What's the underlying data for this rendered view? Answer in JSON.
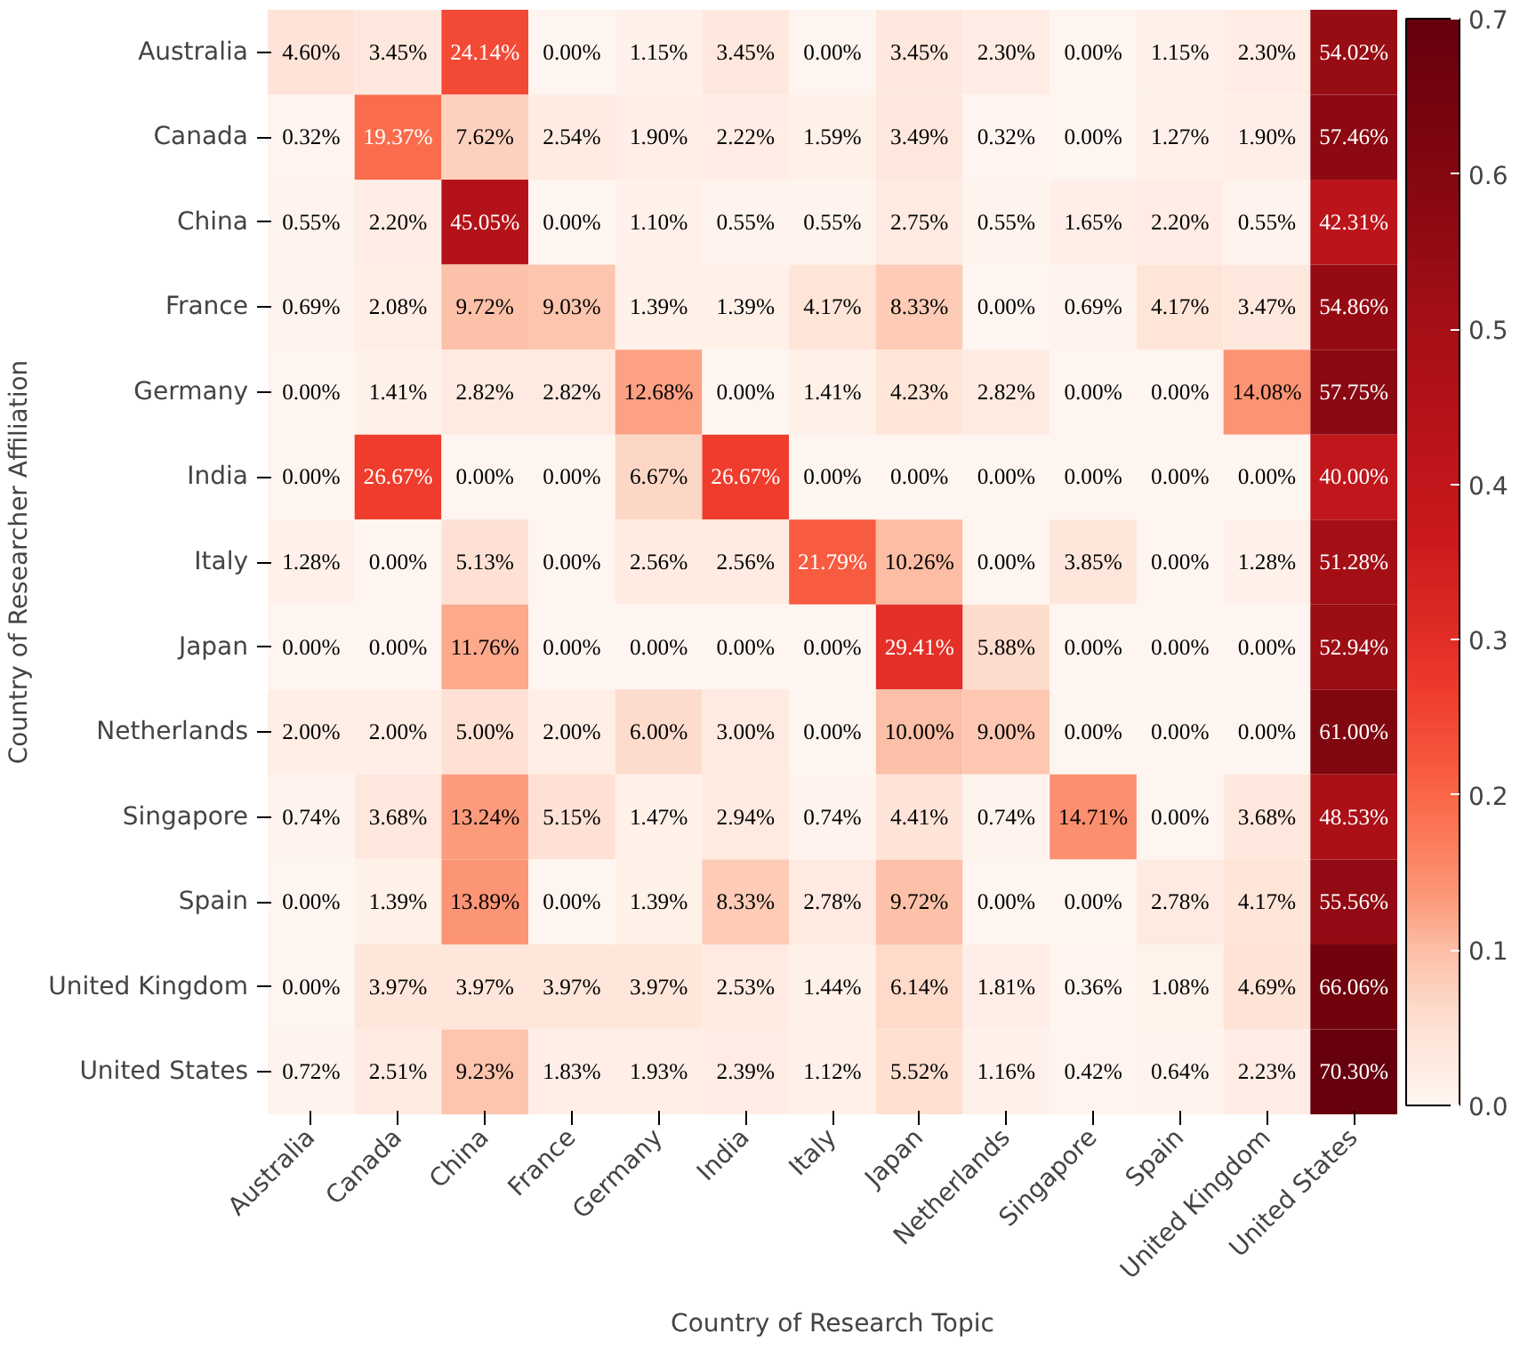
{
  "chart_data": {
    "type": "heatmap",
    "xlabel": "Country of Research Topic",
    "ylabel": "Country of Researcher Affiliation",
    "categories": [
      "Australia",
      "Canada",
      "China",
      "France",
      "Germany",
      "India",
      "Italy",
      "Japan",
      "Netherlands",
      "Singapore",
      "Spain",
      "United Kingdom",
      "United States"
    ],
    "y_categories": [
      "Australia",
      "Canada",
      "China",
      "France",
      "Germany",
      "India",
      "Italy",
      "Japan",
      "Netherlands",
      "Singapore",
      "Spain",
      "United Kingdom",
      "United States"
    ],
    "cells": [
      [
        0.046,
        0.0345,
        0.2414,
        0,
        0.0115,
        0.0345,
        0,
        0.0345,
        0.023,
        0,
        0.0115,
        0.023,
        0.5402
      ],
      [
        0.0032,
        0.1937,
        0.0762,
        0.0254,
        0.019,
        0.0222,
        0.0159,
        0.0349,
        0.0032,
        0,
        0.0127,
        0.019,
        0.5746
      ],
      [
        0.0055,
        0.022,
        0.4505,
        0,
        0.011,
        0.0055,
        0.0055,
        0.0275,
        0.0055,
        0.0165,
        0.022,
        0.0055,
        0.4231
      ],
      [
        0.0069,
        0.0208,
        0.0972,
        0.0903,
        0.0139,
        0.0139,
        0.0417,
        0.0833,
        0,
        0.0069,
        0.0417,
        0.0347,
        0.5486
      ],
      [
        0,
        0.0141,
        0.0282,
        0.0282,
        0.1268,
        0,
        0.0141,
        0.0423,
        0.0282,
        0,
        0,
        0.1408,
        0.5775
      ],
      [
        0,
        0.2667,
        0,
        0,
        0.0667,
        0.2667,
        0,
        0,
        0,
        0,
        0,
        0,
        0.4
      ],
      [
        0.0128,
        0,
        0.0513,
        0,
        0.0256,
        0.0256,
        0.2179,
        0.1026,
        0,
        0.0385,
        0,
        0.0128,
        0.5128
      ],
      [
        0,
        0,
        0.1176,
        0,
        0,
        0,
        0,
        0.2941,
        0.0588,
        0,
        0,
        0,
        0.5294
      ],
      [
        0.02,
        0.02,
        0.05,
        0.02,
        0.06,
        0.03,
        0,
        0.1,
        0.09,
        0,
        0,
        0,
        0.61
      ],
      [
        0.0074,
        0.0368,
        0.1324,
        0.0515,
        0.0147,
        0.0294,
        0.0074,
        0.0441,
        0.0074,
        0.1471,
        0,
        0.0368,
        0.4853
      ],
      [
        0,
        0.0139,
        0.1389,
        0,
        0.0139,
        0.0833,
        0.0278,
        0.0972,
        0,
        0,
        0.0278,
        0.0417,
        0.5556
      ],
      [
        0,
        0.0397,
        0.0397,
        0.0397,
        0.0397,
        0.0253,
        0.0144,
        0.0614,
        0.0181,
        0.0036,
        0.0108,
        0.0469,
        0.6606
      ],
      [
        0.0072,
        0.0251,
        0.0923,
        0.0183,
        0.0193,
        0.0239,
        0.0112,
        0.0552,
        0.0116,
        0.0042,
        0.0064,
        0.0223,
        0.703
      ]
    ],
    "cell_labels": [
      [
        "4.60%",
        "3.45%",
        "24.14%",
        "0.00%",
        "1.15%",
        "3.45%",
        "0.00%",
        "3.45%",
        "2.30%",
        "0.00%",
        "1.15%",
        "2.30%",
        "54.02%"
      ],
      [
        "0.32%",
        "19.37%",
        "7.62%",
        "2.54%",
        "1.90%",
        "2.22%",
        "1.59%",
        "3.49%",
        "0.32%",
        "0.00%",
        "1.27%",
        "1.90%",
        "57.46%"
      ],
      [
        "0.55%",
        "2.20%",
        "45.05%",
        "0.00%",
        "1.10%",
        "0.55%",
        "0.55%",
        "2.75%",
        "0.55%",
        "1.65%",
        "2.20%",
        "0.55%",
        "42.31%"
      ],
      [
        "0.69%",
        "2.08%",
        "9.72%",
        "9.03%",
        "1.39%",
        "1.39%",
        "4.17%",
        "8.33%",
        "0.00%",
        "0.69%",
        "4.17%",
        "3.47%",
        "54.86%"
      ],
      [
        "0.00%",
        "1.41%",
        "2.82%",
        "2.82%",
        "12.68%",
        "0.00%",
        "1.41%",
        "4.23%",
        "2.82%",
        "0.00%",
        "0.00%",
        "14.08%",
        "57.75%"
      ],
      [
        "0.00%",
        "26.67%",
        "0.00%",
        "0.00%",
        "6.67%",
        "26.67%",
        "0.00%",
        "0.00%",
        "0.00%",
        "0.00%",
        "0.00%",
        "0.00%",
        "40.00%"
      ],
      [
        "1.28%",
        "0.00%",
        "5.13%",
        "0.00%",
        "2.56%",
        "2.56%",
        "21.79%",
        "10.26%",
        "0.00%",
        "3.85%",
        "0.00%",
        "1.28%",
        "51.28%"
      ],
      [
        "0.00%",
        "0.00%",
        "11.76%",
        "0.00%",
        "0.00%",
        "0.00%",
        "0.00%",
        "29.41%",
        "5.88%",
        "0.00%",
        "0.00%",
        "0.00%",
        "52.94%"
      ],
      [
        "2.00%",
        "2.00%",
        "5.00%",
        "2.00%",
        "6.00%",
        "3.00%",
        "0.00%",
        "10.00%",
        "9.00%",
        "0.00%",
        "0.00%",
        "0.00%",
        "61.00%"
      ],
      [
        "0.74%",
        "3.68%",
        "13.24%",
        "5.15%",
        "1.47%",
        "2.94%",
        "0.74%",
        "4.41%",
        "0.74%",
        "14.71%",
        "0.00%",
        "3.68%",
        "48.53%"
      ],
      [
        "0.00%",
        "1.39%",
        "13.89%",
        "0.00%",
        "1.39%",
        "8.33%",
        "2.78%",
        "9.72%",
        "0.00%",
        "0.00%",
        "2.78%",
        "4.17%",
        "55.56%"
      ],
      [
        "0.00%",
        "3.97%",
        "3.97%",
        "3.97%",
        "3.97%",
        "2.53%",
        "1.44%",
        "6.14%",
        "1.81%",
        "0.36%",
        "1.08%",
        "4.69%",
        "66.06%"
      ],
      [
        "0.72%",
        "2.51%",
        "9.23%",
        "1.83%",
        "1.93%",
        "2.39%",
        "1.12%",
        "5.52%",
        "1.16%",
        "0.42%",
        "0.64%",
        "2.23%",
        "70.30%"
      ]
    ],
    "clim": [
      0,
      0.7
    ],
    "cticks": [
      {
        "value": 0,
        "label": "0.0"
      },
      0.1,
      0.2,
      0.3,
      0.4,
      0.5,
      0.6,
      0.7
    ]
  }
}
